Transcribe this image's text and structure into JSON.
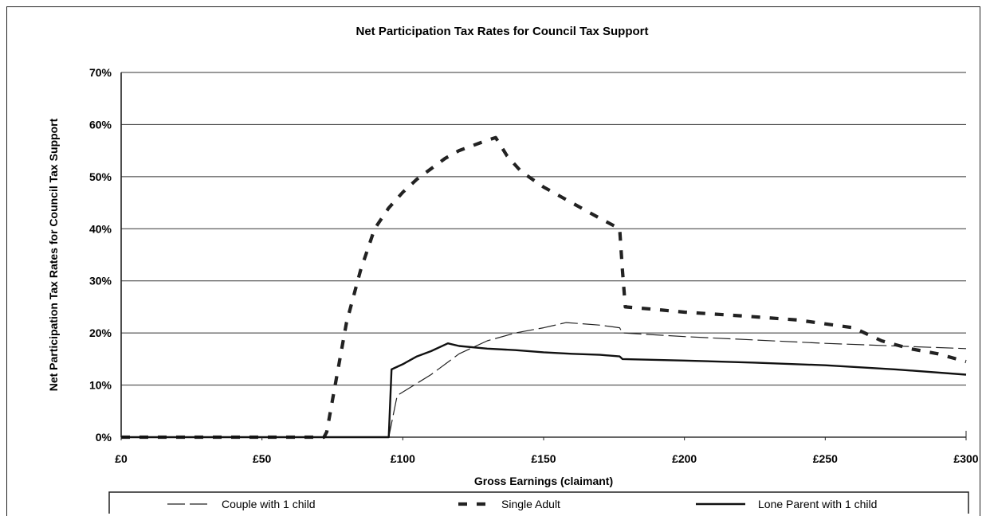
{
  "chart_data": {
    "type": "line",
    "title": "Net Participation Tax Rates for Council Tax Support",
    "xlabel": "Gross Earnings (claimant)",
    "ylabel": "Net Participation Tax Rates for Council Tax Support",
    "xlim": [
      0,
      300
    ],
    "ylim": [
      0,
      70
    ],
    "x_ticks": [
      "£0",
      "£50",
      "£100",
      "£150",
      "£200",
      "£250",
      "£300"
    ],
    "y_ticks": [
      "0%",
      "10%",
      "20%",
      "30%",
      "40%",
      "50%",
      "60%",
      "70%"
    ],
    "grid": true,
    "legend_position": "bottom",
    "series": [
      {
        "name": "Couple with 1 child",
        "style": "thin-long-dash",
        "color": "#222222",
        "points": [
          [
            0,
            0
          ],
          [
            95,
            0
          ],
          [
            95,
            0
          ],
          [
            98,
            8
          ],
          [
            110,
            12
          ],
          [
            120,
            16
          ],
          [
            130,
            18.5
          ],
          [
            140,
            20
          ],
          [
            150,
            21
          ],
          [
            158,
            22
          ],
          [
            170,
            21.5
          ],
          [
            177,
            21
          ],
          [
            178,
            20
          ],
          [
            200,
            19.3
          ],
          [
            250,
            18
          ],
          [
            300,
            17
          ]
        ]
      },
      {
        "name": "Single Adult",
        "style": "thick-dash",
        "color": "#222222",
        "points": [
          [
            0,
            0
          ],
          [
            72,
            0
          ],
          [
            73,
            1
          ],
          [
            76,
            10
          ],
          [
            80,
            22
          ],
          [
            85,
            32
          ],
          [
            90,
            40
          ],
          [
            95,
            44
          ],
          [
            100,
            47
          ],
          [
            105,
            49.5
          ],
          [
            110,
            51.5
          ],
          [
            115,
            53.5
          ],
          [
            120,
            55
          ],
          [
            125,
            56
          ],
          [
            130,
            57
          ],
          [
            133,
            57.5
          ],
          [
            137,
            54
          ],
          [
            142,
            51
          ],
          [
            150,
            48
          ],
          [
            160,
            45
          ],
          [
            170,
            42
          ],
          [
            177,
            40
          ],
          [
            178,
            32
          ],
          [
            179,
            25
          ],
          [
            190,
            24.5
          ],
          [
            200,
            24
          ],
          [
            220,
            23.3
          ],
          [
            240,
            22.5
          ],
          [
            260,
            21
          ],
          [
            270,
            18.5
          ],
          [
            280,
            17
          ],
          [
            290,
            16
          ],
          [
            300,
            14.5
          ]
        ]
      },
      {
        "name": "Lone Parent with 1 child",
        "style": "solid",
        "color": "#111111",
        "points": [
          [
            0,
            0
          ],
          [
            94,
            0
          ],
          [
            95,
            0
          ],
          [
            96,
            13
          ],
          [
            100,
            14
          ],
          [
            105,
            15.5
          ],
          [
            110,
            16.5
          ],
          [
            116,
            18
          ],
          [
            120,
            17.5
          ],
          [
            130,
            17
          ],
          [
            140,
            16.7
          ],
          [
            150,
            16.3
          ],
          [
            160,
            16
          ],
          [
            170,
            15.8
          ],
          [
            177,
            15.5
          ],
          [
            178,
            15
          ],
          [
            200,
            14.7
          ],
          [
            225,
            14.3
          ],
          [
            250,
            13.8
          ],
          [
            275,
            13
          ],
          [
            300,
            12
          ]
        ]
      }
    ]
  }
}
